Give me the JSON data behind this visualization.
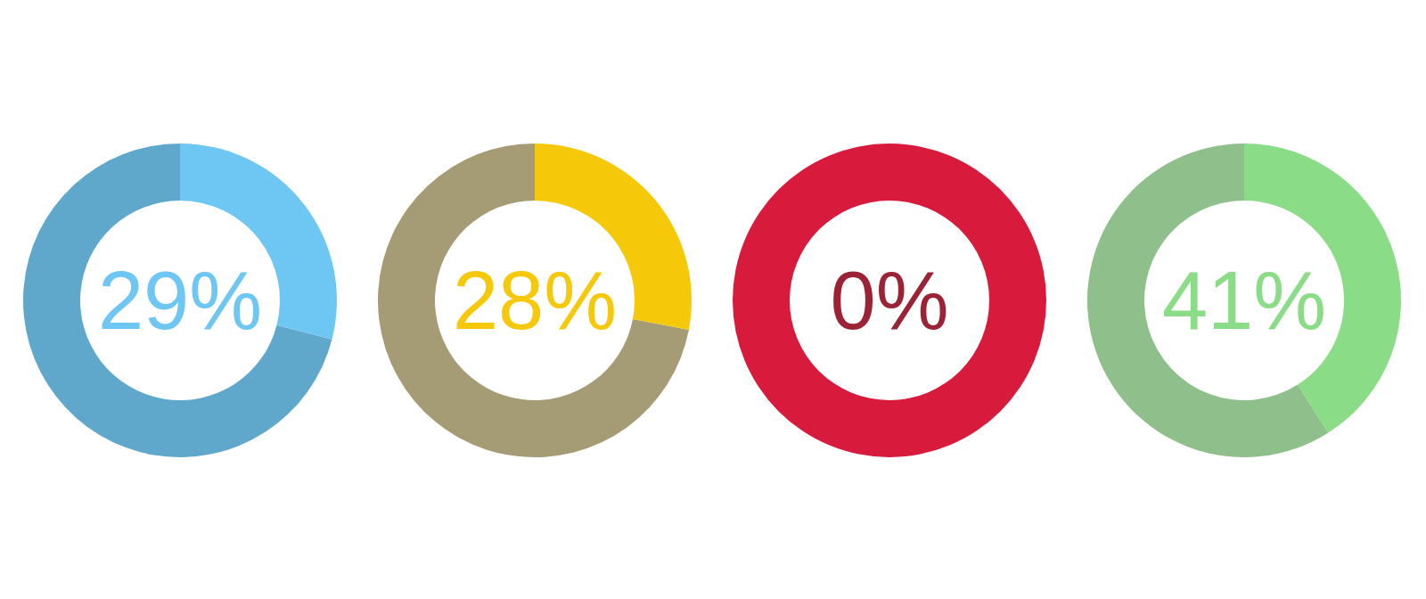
{
  "chart_data": [
    {
      "type": "donut",
      "categories": [
        null,
        null
      ],
      "values": [
        29,
        71
      ],
      "colors": [
        "#6ec6f2",
        "#5fa8cc"
      ],
      "annotations": [
        "29%"
      ]
    },
    {
      "type": "donut",
      "categories": [
        null,
        null
      ],
      "values": [
        28,
        72
      ],
      "colors": [
        "#f5c90a",
        "#a59b74"
      ],
      "annotations": [
        "28%"
      ]
    },
    {
      "type": "donut",
      "categories": [
        null,
        null
      ],
      "values": [
        0,
        100
      ],
      "colors": [
        "#9b2335",
        "#d81b3c"
      ],
      "annotations": [
        "0%"
      ]
    },
    {
      "type": "donut",
      "categories": [
        null,
        null
      ],
      "values": [
        41,
        59
      ],
      "colors": [
        "#8bdc86",
        "#8fbf8a"
      ],
      "annotations": [
        "41%"
      ]
    }
  ]
}
